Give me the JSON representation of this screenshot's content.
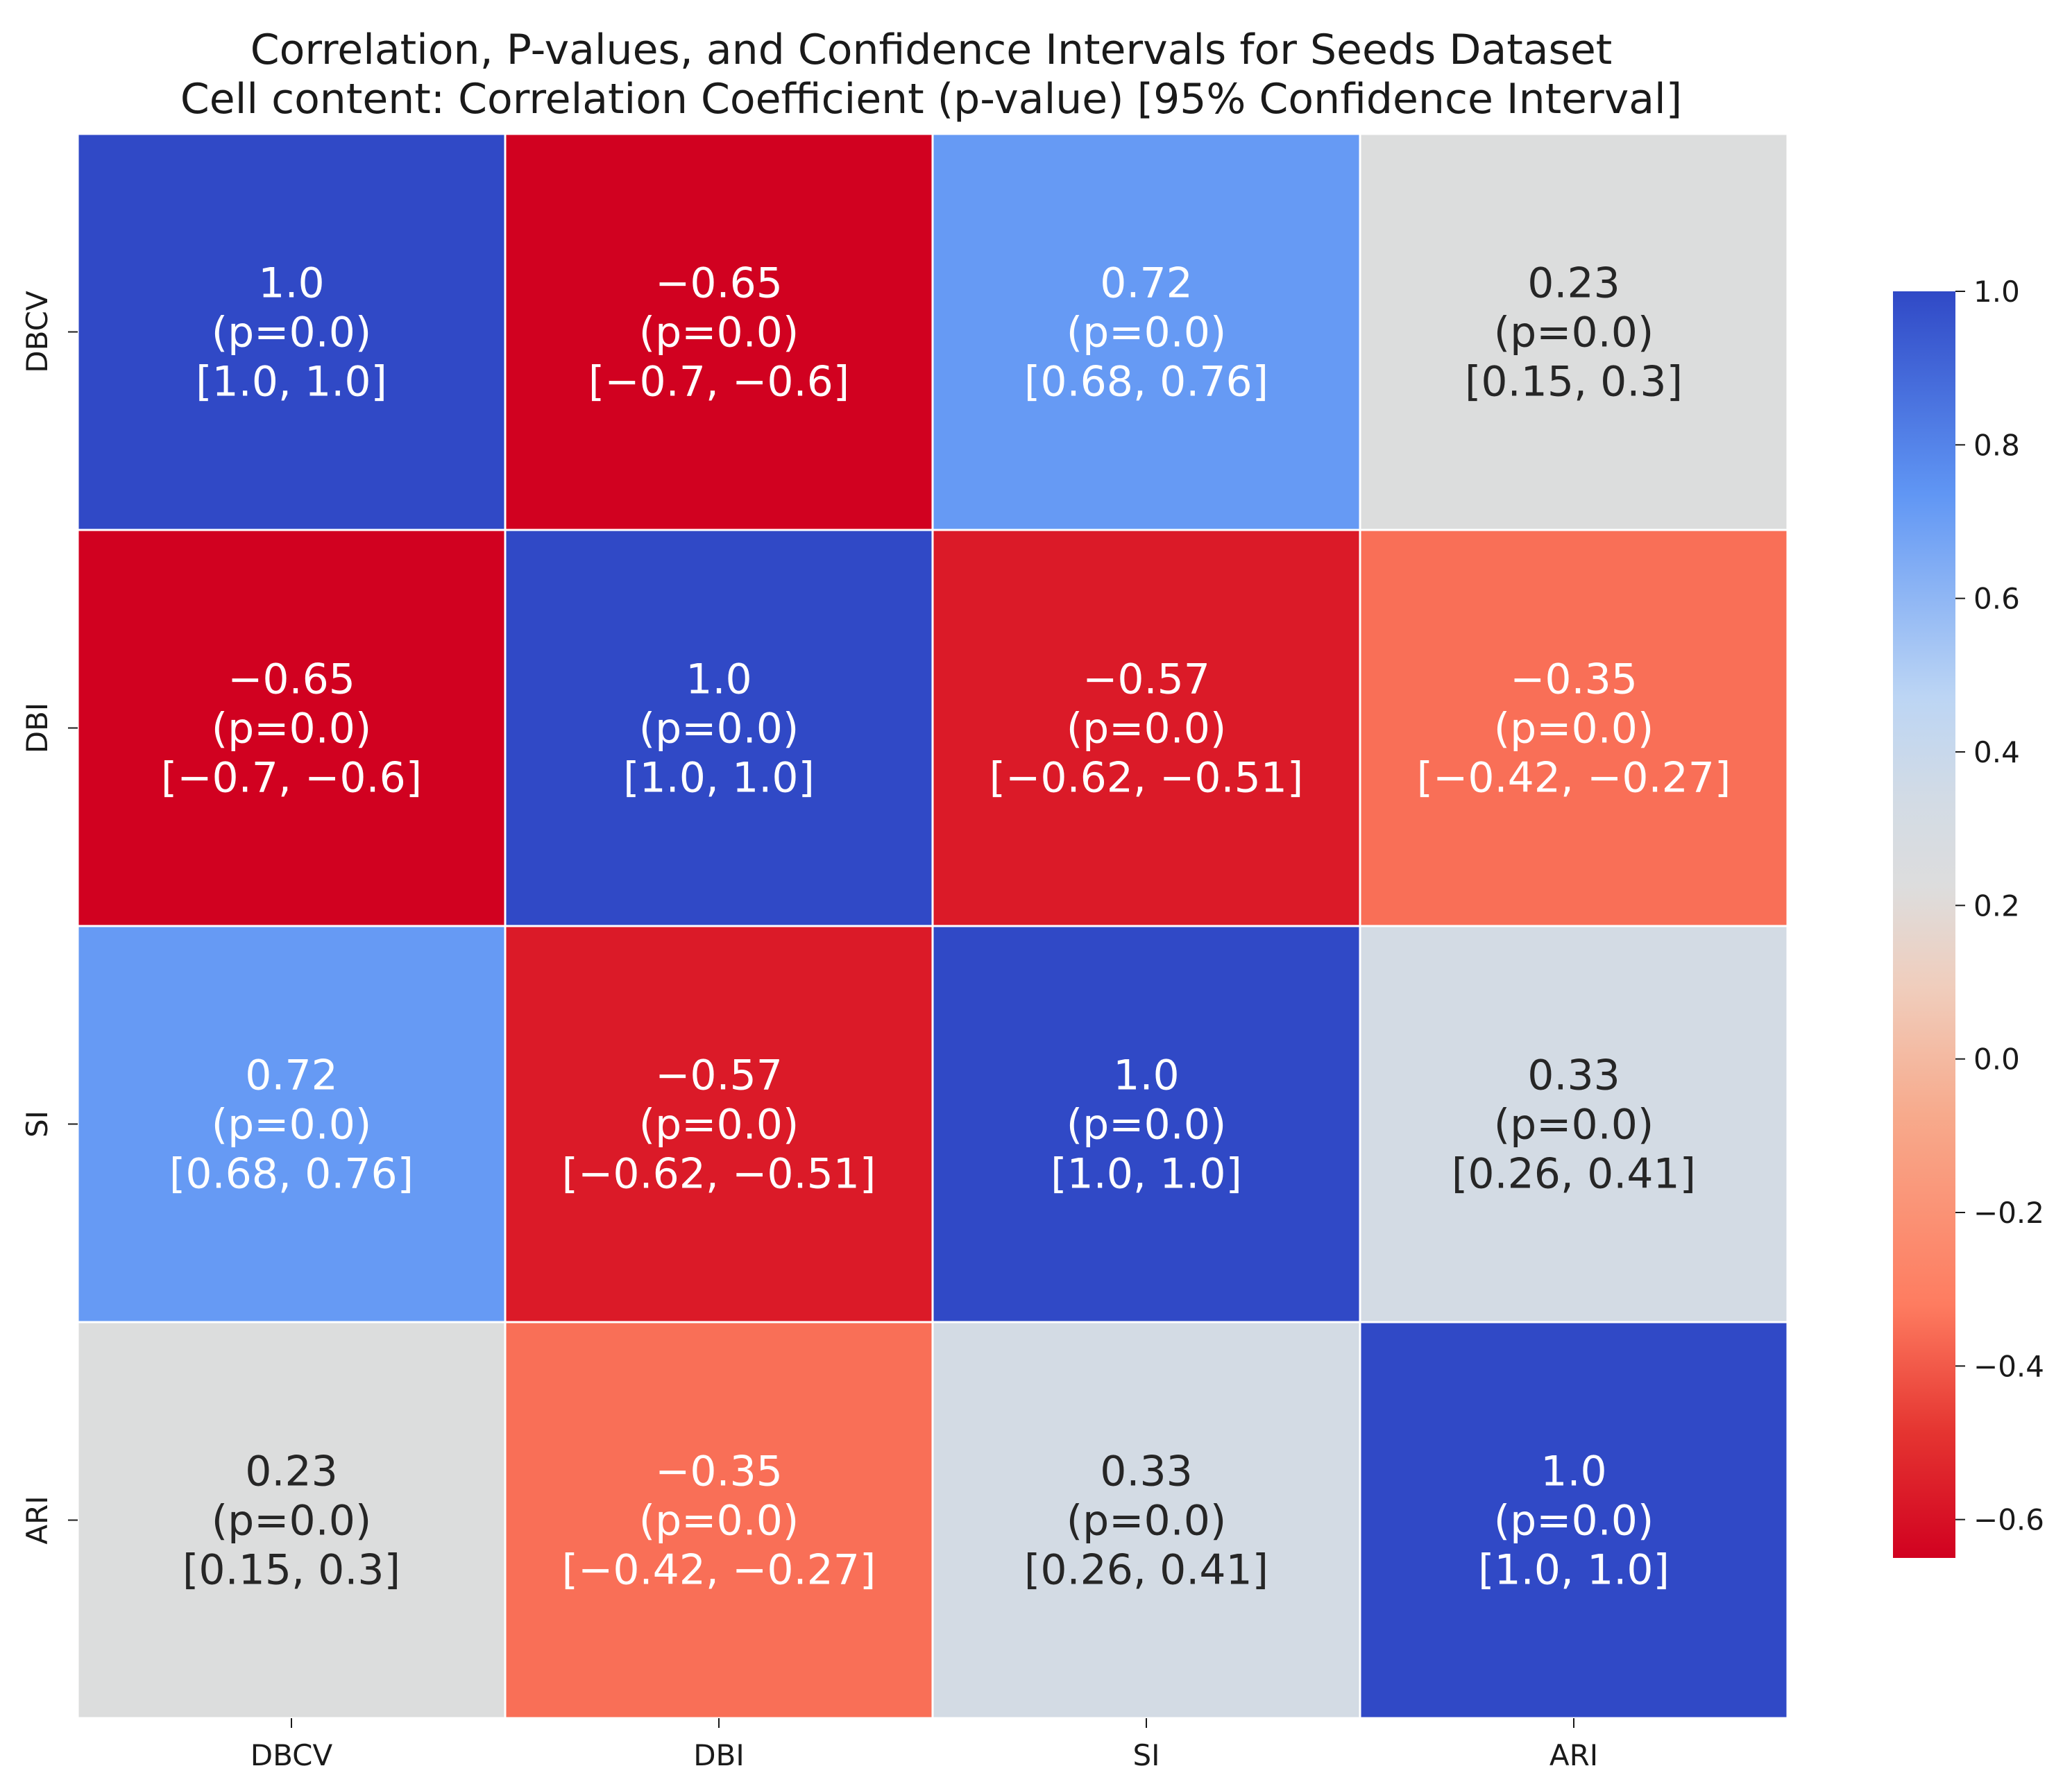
{
  "chart_data": {
    "type": "heatmap",
    "title": "Correlation, P-values, and Confidence Intervals for Seeds Dataset",
    "subtitle": "Cell content: Correlation Coefficient (p-value) [95% Confidence Interval]",
    "row_labels": [
      "DBCV",
      "DBI",
      "SI",
      "ARI"
    ],
    "col_labels": [
      "DBCV",
      "DBI",
      "SI",
      "ARI"
    ],
    "values": [
      [
        1.0,
        -0.65,
        0.72,
        0.23
      ],
      [
        -0.65,
        1.0,
        -0.57,
        -0.35
      ],
      [
        0.72,
        -0.57,
        1.0,
        0.33
      ],
      [
        0.23,
        -0.35,
        0.33,
        1.0
      ]
    ],
    "cell_text": [
      [
        {
          "corr": "1.0",
          "p": "(p=0.0)",
          "ci": "[1.0, 1.0]"
        },
        {
          "corr": "−0.65",
          "p": "(p=0.0)",
          "ci": "[−0.7, −0.6]"
        },
        {
          "corr": "0.72",
          "p": "(p=0.0)",
          "ci": "[0.68, 0.76]"
        },
        {
          "corr": "0.23",
          "p": "(p=0.0)",
          "ci": "[0.15, 0.3]"
        }
      ],
      [
        {
          "corr": "−0.65",
          "p": "(p=0.0)",
          "ci": "[−0.7, −0.6]"
        },
        {
          "corr": "1.0",
          "p": "(p=0.0)",
          "ci": "[1.0, 1.0]"
        },
        {
          "corr": "−0.57",
          "p": "(p=0.0)",
          "ci": "[−0.62, −0.51]"
        },
        {
          "corr": "−0.35",
          "p": "(p=0.0)",
          "ci": "[−0.42, −0.27]"
        }
      ],
      [
        {
          "corr": "0.72",
          "p": "(p=0.0)",
          "ci": "[0.68, 0.76]"
        },
        {
          "corr": "−0.57",
          "p": "(p=0.0)",
          "ci": "[−0.62, −0.51]"
        },
        {
          "corr": "1.0",
          "p": "(p=0.0)",
          "ci": "[1.0, 1.0]"
        },
        {
          "corr": "0.33",
          "p": "(p=0.0)",
          "ci": "[0.26, 0.41]"
        }
      ],
      [
        {
          "corr": "0.23",
          "p": "(p=0.0)",
          "ci": "[0.15, 0.3]"
        },
        {
          "corr": "−0.35",
          "p": "(p=0.0)",
          "ci": "[−0.42, −0.27]"
        },
        {
          "corr": "0.33",
          "p": "(p=0.0)",
          "ci": "[0.26, 0.41]"
        },
        {
          "corr": "1.0",
          "p": "(p=0.0)",
          "ci": "[1.0, 1.0]"
        }
      ]
    ],
    "colormap": "coolwarm_r",
    "vmin": -0.65,
    "vmax": 1.0,
    "colorbar": {
      "ticks": [
        1.0,
        0.8,
        0.6,
        0.4,
        0.2,
        0.0,
        -0.2,
        -0.4,
        -0.6
      ],
      "tick_labels": [
        "1.0",
        "0.8",
        "0.6",
        "0.4",
        "0.2",
        "0.0",
        "−0.2",
        "−0.4",
        "−0.6"
      ],
      "placement": "right"
    },
    "colors": {
      "dark_blue": "#3049c6",
      "mid_blue": "#6096f4",
      "light_blue": "#bcd5f4",
      "light_gray": "#d2dbe5",
      "salmon": "#fe7c60",
      "red": "#e53531",
      "dark_red": "#d10120",
      "text_light": "#ffffff",
      "text_dark": "#262626"
    }
  }
}
